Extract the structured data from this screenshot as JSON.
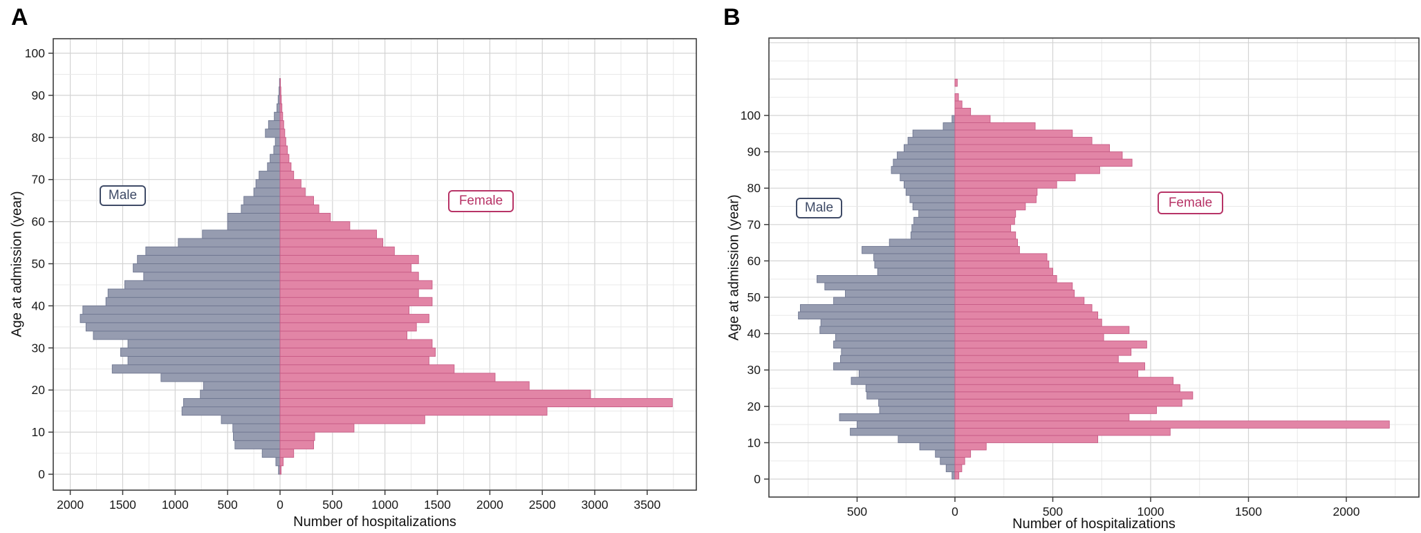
{
  "figure": {
    "xlabel": "Number of hospitalizations",
    "ylabel": "Age at admission (year)"
  },
  "legend": {
    "male": "Male",
    "female": "Female"
  },
  "colors": {
    "male_fill": "#969CB0",
    "male_stroke": "#6E7690",
    "male_label": "#3E4A66",
    "female_fill": "#E285A6",
    "female_stroke": "#C75C86",
    "female_label": "#B73366",
    "grid_major": "#d3d3d3",
    "grid_minor": "#e8e8e8",
    "panel_border": "#3c3c3c",
    "tick": "#3c3c3c",
    "tick_label": "#1a1a1a"
  },
  "chart_data": [
    {
      "type": "bar",
      "variant": "population-pyramid",
      "letter": "A",
      "title": "",
      "xlabel": "Number of hospitalizations",
      "ylabel": "Age at admission (year)",
      "male_label": "Male",
      "female_label": "Female",
      "age_start": 0,
      "age_bin_width": 2,
      "xlim": [
        -2160,
        3970
      ],
      "ylim": [
        -4,
        103
      ],
      "grid": "major and minor, on",
      "legend_position": "inside panel, boxed labels",
      "x_tick_values": [
        -2000,
        -1500,
        -1000,
        -500,
        0,
        500,
        1000,
        1500,
        2000,
        2500,
        3000,
        3500
      ],
      "x_tick_labels": [
        "2000",
        "1500",
        "1000",
        "500",
        "0",
        "500",
        "1000",
        "1500",
        "2000",
        "2500",
        "3000",
        "3500"
      ],
      "y_tick_values": [
        0,
        10,
        20,
        30,
        40,
        50,
        60,
        70,
        80,
        90,
        100
      ],
      "y_tick_labels": [
        "0",
        "10",
        "20",
        "30",
        "40",
        "50",
        "60",
        "70",
        "80",
        "90",
        "100"
      ],
      "male_values": [
        15,
        40,
        170,
        430,
        445,
        450,
        560,
        935,
        920,
        760,
        730,
        1135,
        1600,
        1450,
        1520,
        1450,
        1780,
        1850,
        1905,
        1880,
        1660,
        1640,
        1480,
        1300,
        1400,
        1360,
        1280,
        970,
        740,
        500,
        500,
        370,
        345,
        250,
        230,
        200,
        120,
        95,
        60,
        45,
        140,
        110,
        55,
        30,
        18,
        10,
        5
      ],
      "female_values": [
        10,
        30,
        130,
        320,
        330,
        705,
        1380,
        2545,
        3740,
        2960,
        2375,
        2050,
        1660,
        1420,
        1480,
        1450,
        1210,
        1300,
        1420,
        1230,
        1450,
        1320,
        1450,
        1320,
        1250,
        1320,
        1090,
        980,
        920,
        665,
        480,
        370,
        320,
        240,
        200,
        130,
        105,
        85,
        70,
        55,
        45,
        35,
        25,
        18,
        12,
        8,
        4
      ]
    },
    {
      "type": "bar",
      "variant": "population-pyramid",
      "letter": "B",
      "title": "",
      "xlabel": "Number of hospitalizations",
      "ylabel": "Age at admission (year)",
      "male_label": "Male",
      "female_label": "Female",
      "age_start": 0,
      "age_bin_width": 2,
      "xlim": [
        -950,
        2370
      ],
      "ylim": [
        -5,
        121
      ],
      "grid": "major and minor, on",
      "legend_position": "inside panel, boxed labels",
      "x_tick_values": [
        -500,
        0,
        500,
        1000,
        1500,
        2000
      ],
      "x_tick_labels": [
        "500",
        "0",
        "500",
        "1000",
        "1500",
        "2000"
      ],
      "y_tick_values": [
        0,
        10,
        20,
        30,
        40,
        50,
        60,
        70,
        80,
        90,
        100
      ],
      "y_tick_labels": [
        "0",
        "10",
        "20",
        "30",
        "40",
        "50",
        "60",
        "70",
        "80",
        "90",
        "100"
      ],
      "male_values": [
        15,
        45,
        75,
        100,
        180,
        290,
        535,
        500,
        590,
        385,
        390,
        450,
        455,
        530,
        490,
        620,
        585,
        580,
        620,
        610,
        690,
        685,
        800,
        790,
        620,
        560,
        665,
        705,
        395,
        410,
        415,
        475,
        335,
        225,
        220,
        210,
        185,
        215,
        230,
        250,
        260,
        280,
        325,
        315,
        295,
        260,
        240,
        215,
        60,
        15
      ],
      "female_values": [
        20,
        35,
        50,
        80,
        160,
        730,
        1100,
        2220,
        890,
        1030,
        1160,
        1215,
        1150,
        1115,
        935,
        970,
        835,
        900,
        980,
        760,
        890,
        750,
        730,
        700,
        660,
        610,
        600,
        520,
        500,
        480,
        470,
        330,
        320,
        310,
        285,
        305,
        310,
        360,
        415,
        420,
        520,
        615,
        740,
        905,
        855,
        790,
        700,
        600,
        410,
        180,
        80,
        36,
        18,
        0,
        12
      ]
    }
  ]
}
